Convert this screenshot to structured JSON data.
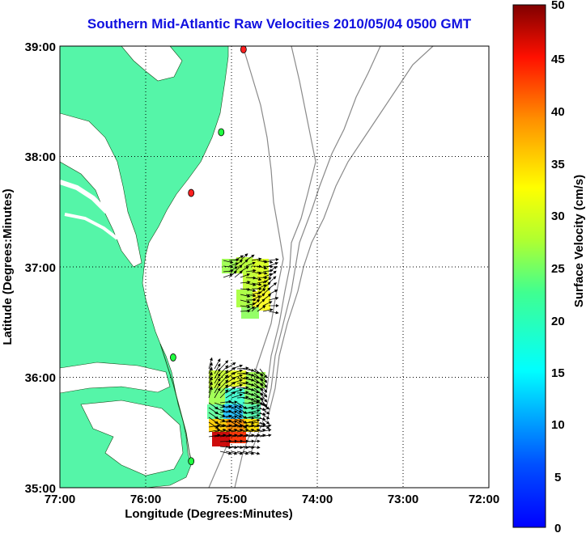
{
  "title": "Southern Mid-Atlantic Raw Velocities 2010/05/04 0500 GMT",
  "chart_data": {
    "type": "heatmap",
    "xlabel": "Longitude (Degrees:Minutes)",
    "ylabel": "Latitude (Degrees:Minutes)",
    "x_ticks": [
      "77:00",
      "76:00",
      "75:00",
      "74:00",
      "73:00",
      "72:00"
    ],
    "y_ticks": [
      "39:00",
      "38:00",
      "37:00",
      "36:00",
      "35:00"
    ],
    "xlim": [
      -77,
      -72
    ],
    "ylim": [
      35,
      39
    ],
    "grid": "dotted",
    "colorbar": {
      "label": "Surface Velocity (cm/s)",
      "range": [
        0,
        50
      ],
      "ticks": [
        "50",
        "45",
        "40",
        "35",
        "30",
        "25",
        "20",
        "15",
        "10",
        "5",
        "0"
      ],
      "colormap": "jet"
    },
    "stations": [
      {
        "lon": -74.86,
        "lat": 38.97,
        "color": "#ff2020"
      },
      {
        "lon": -75.12,
        "lat": 38.22,
        "color": "#20ff40"
      },
      {
        "lon": -75.47,
        "lat": 37.67,
        "color": "#ff2020"
      },
      {
        "lon": -75.68,
        "lat": 36.18,
        "color": "#20ff40"
      },
      {
        "lon": -75.47,
        "lat": 35.24,
        "color": "#20ff40"
      }
    ],
    "velocity_clusters": [
      {
        "region": "north",
        "lon_range": [
          -75.1,
          -74.5
        ],
        "lat_range": [
          36.5,
          37.1
        ],
        "speed_range_cms": [
          17,
          25
        ]
      },
      {
        "region": "south",
        "lon_range": [
          -75.5,
          -74.6
        ],
        "lat_range": [
          35.3,
          36.05
        ],
        "speed_range_cms": [
          8,
          48
        ]
      }
    ]
  }
}
